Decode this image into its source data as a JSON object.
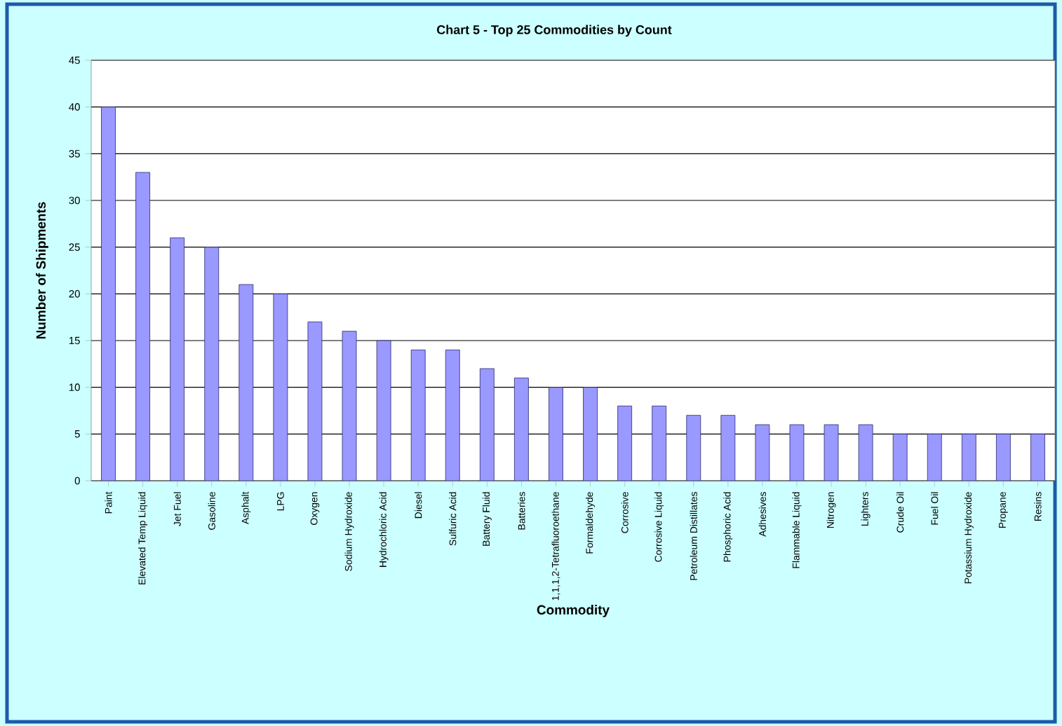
{
  "chart_data": {
    "type": "bar",
    "title": "Chart 5  -  Top 25 Commodities by Count",
    "xlabel": "Commodity",
    "ylabel": "Number of Shipments",
    "categories": [
      "Paint",
      "Elevated Temp Liquid",
      "Jet Fuel",
      "Gasoline",
      "Asphalt",
      "LPG",
      "Oxygen",
      "Sodium Hydroxide",
      "Hydrochloric Acid",
      "Diesel",
      "Sulfuric Acid",
      "Battery Fluid",
      "Batteries",
      "1,1,1,2-Tetrafluoroethane",
      "Formaldehyde",
      "Corrosive",
      "Corrosive Liquid",
      "Petroleum Distillates",
      "Phosphoric Acid",
      "Adhesives",
      "Flammable Liquid",
      "Nitrogen",
      "Lighters",
      "Crude Oil",
      "Fuel Oil",
      "Potassium Hydroxide",
      "Propane",
      "Resins"
    ],
    "values": [
      40,
      33,
      26,
      25,
      21,
      20,
      17,
      16,
      15,
      14,
      14,
      12,
      11,
      10,
      10,
      8,
      8,
      7,
      7,
      6,
      6,
      6,
      6,
      5,
      5,
      5,
      5,
      5
    ],
    "color": "#9999ff",
    "ylim": [
      0,
      45
    ],
    "yticks": [
      0,
      5,
      10,
      15,
      20,
      25,
      30,
      35,
      40,
      45
    ],
    "grid": "y"
  }
}
